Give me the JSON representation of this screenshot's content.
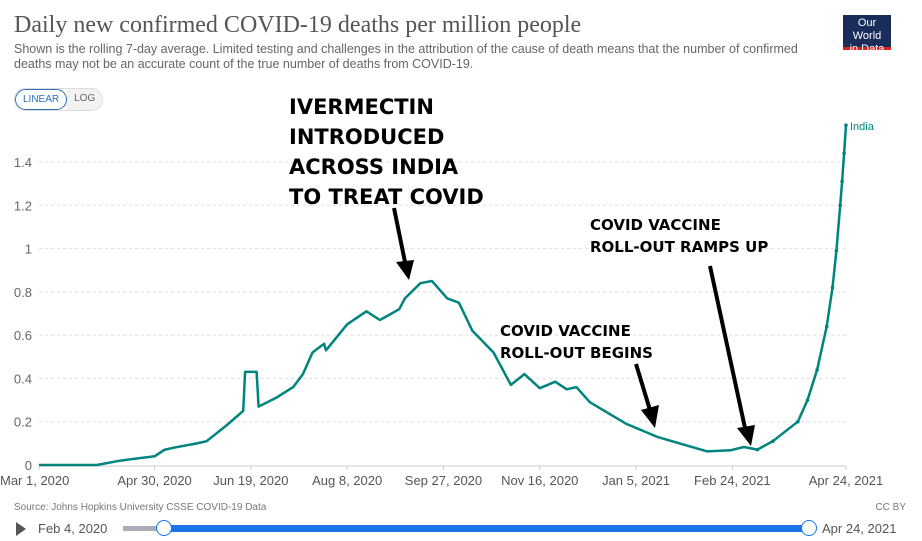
{
  "header": {
    "title": "Daily new confirmed COVID-19 deaths per million people",
    "subtitle": "Shown is the rolling 7-day average. Limited testing and challenges in the attribution of the cause of death means that the number of confirmed deaths may not be an accurate count of the true number of deaths from COVID-19.",
    "logo_line1": "Our World",
    "logo_line2": "in Data"
  },
  "scale_toggle": {
    "linear": "LINEAR",
    "log": "LOG",
    "selected": "LINEAR"
  },
  "footer": {
    "source": "Source: Johns Hopkins University CSSE COVID-19 Data",
    "license": "CC BY"
  },
  "timeline": {
    "start_label": "Feb 4, 2020",
    "end_label": "Apr 24, 2021",
    "play_icon": "play-icon"
  },
  "annotations": {
    "ivermectin": [
      "IVERMECTIN",
      "INTRODUCED",
      "ACROSS INDIA",
      "TO TREAT COVID"
    ],
    "vaccine_begins": [
      "COVID VACCINE",
      "ROLL-OUT BEGINS"
    ],
    "vaccine_ramps": [
      "COVID VACCINE",
      "ROLL-OUT RAMPS UP"
    ]
  },
  "chart_data": {
    "type": "line",
    "title": "Daily new confirmed COVID-19 deaths per million people",
    "xlim": [
      "2020-03-01",
      "2021-04-24"
    ],
    "ylim": [
      0,
      1.4
    ],
    "grid": true,
    "x_ticks": [
      "Mar 1, 2020",
      "Apr 30, 2020",
      "Jun 19, 2020",
      "Aug 8, 2020",
      "Sep 27, 2020",
      "Nov 16, 2020",
      "Jan 5, 2021",
      "Feb 24, 2021",
      "Apr 24, 2021"
    ],
    "x_tick_dates": [
      "2020-03-01",
      "2020-04-30",
      "2020-06-19",
      "2020-08-08",
      "2020-09-27",
      "2020-11-16",
      "2021-01-05",
      "2021-02-24",
      "2021-04-24"
    ],
    "y_ticks": [
      "0",
      "0.2",
      "0.4",
      "0.6",
      "0.8",
      "1",
      "1.2",
      "1.4"
    ],
    "y_tick_values": [
      0,
      0.2,
      0.4,
      0.6,
      0.8,
      1,
      1.2,
      1.4
    ],
    "color": "#00847e",
    "series": [
      {
        "name": "India",
        "points": [
          [
            "2020-03-01",
            0
          ],
          [
            "2020-03-31",
            0
          ],
          [
            "2020-04-12",
            0.02
          ],
          [
            "2020-04-30",
            0.04
          ],
          [
            "2020-05-05",
            0.07
          ],
          [
            "2020-05-10",
            0.08
          ],
          [
            "2020-05-22",
            0.1
          ],
          [
            "2020-05-27",
            0.11
          ],
          [
            "2020-06-06",
            0.18
          ],
          [
            "2020-06-15",
            0.25
          ],
          [
            "2020-06-16",
            0.43
          ],
          [
            "2020-06-22",
            0.43
          ],
          [
            "2020-06-23",
            0.27
          ],
          [
            "2020-07-02",
            0.31
          ],
          [
            "2020-07-11",
            0.36
          ],
          [
            "2020-07-16",
            0.42
          ],
          [
            "2020-07-21",
            0.52
          ],
          [
            "2020-07-27",
            0.56
          ],
          [
            "2020-07-28",
            0.53
          ],
          [
            "2020-08-08",
            0.65
          ],
          [
            "2020-08-18",
            0.71
          ],
          [
            "2020-08-25",
            0.67
          ],
          [
            "2020-09-04",
            0.72
          ],
          [
            "2020-09-07",
            0.77
          ],
          [
            "2020-09-15",
            0.84
          ],
          [
            "2020-09-21",
            0.85
          ],
          [
            "2020-09-29",
            0.77
          ],
          [
            "2020-10-05",
            0.75
          ],
          [
            "2020-10-12",
            0.62
          ],
          [
            "2020-10-23",
            0.52
          ],
          [
            "2020-11-01",
            0.37
          ],
          [
            "2020-11-08",
            0.42
          ],
          [
            "2020-11-16",
            0.355
          ],
          [
            "2020-11-24",
            0.385
          ],
          [
            "2020-11-30",
            0.35
          ],
          [
            "2020-12-05",
            0.36
          ],
          [
            "2020-12-12",
            0.29
          ],
          [
            "2020-12-31",
            0.19
          ],
          [
            "2021-01-16",
            0.13
          ],
          [
            "2021-02-11",
            0.063
          ],
          [
            "2021-02-23",
            0.068
          ],
          [
            "2021-03-02",
            0.083
          ],
          [
            "2021-03-09",
            0.071
          ],
          [
            "2021-03-17",
            0.11
          ],
          [
            "2021-03-30",
            0.2
          ],
          [
            "2021-04-04",
            0.3
          ],
          [
            "2021-04-09",
            0.44
          ],
          [
            "2021-04-14",
            0.64
          ],
          [
            "2021-04-17",
            0.82
          ],
          [
            "2021-04-19",
            0.99
          ],
          [
            "2021-04-21",
            1.2
          ],
          [
            "2021-04-22",
            1.31
          ],
          [
            "2021-04-23",
            1.44
          ],
          [
            "2021-04-24",
            1.57
          ]
        ]
      }
    ]
  }
}
